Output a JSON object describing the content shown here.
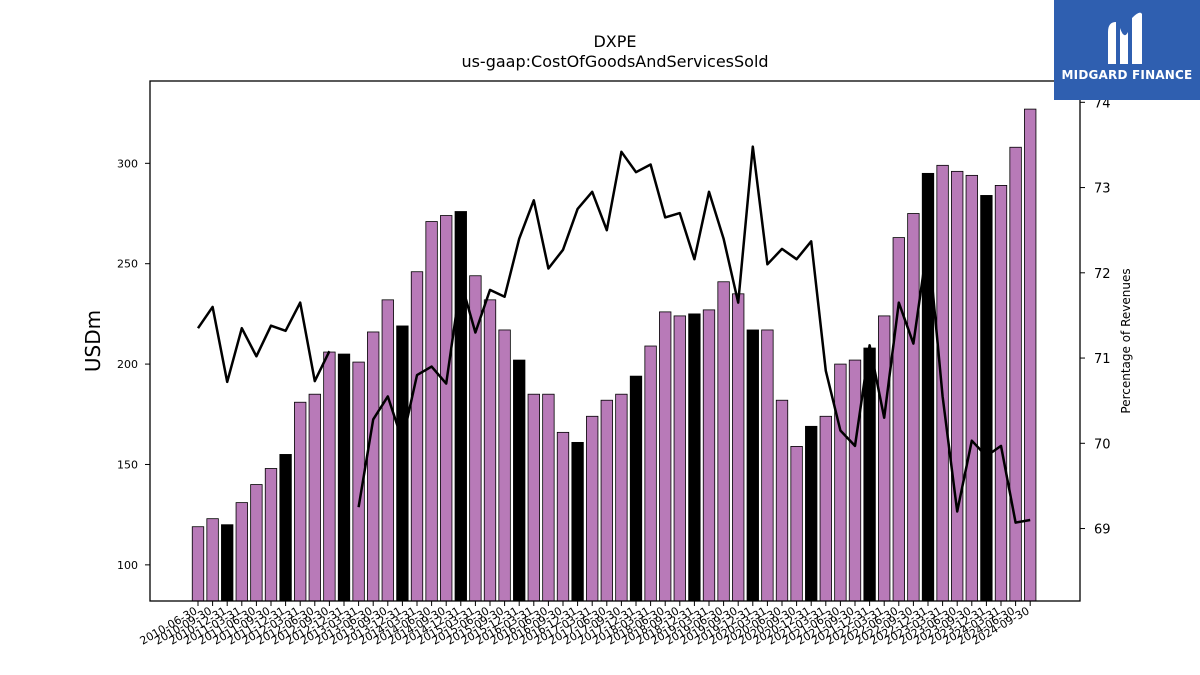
{
  "logo": {
    "text": "MIDGARD FINANCE"
  },
  "chart_data": {
    "type": "bar+line",
    "title": "DXPE",
    "subtitle": "us-gaap:CostOfGoodsAndServicesSold",
    "ylabel": "USDm",
    "y2label": "Percentage of Revenues",
    "ylim": [
      82,
      341
    ],
    "y2lim": [
      68.15,
      74.25
    ],
    "yticks": [
      100,
      150,
      200,
      250,
      300
    ],
    "y2ticks": [
      69,
      70,
      71,
      72,
      73,
      74
    ],
    "grid": false,
    "colors": {
      "quarter_bar": "#b87ab8",
      "annual_bar": "#000000",
      "line": "#000000"
    },
    "categories": [
      "2010-06-30",
      "2010-09-30",
      "2010-12-31",
      "2011-03-31",
      "2011-06-30",
      "2011-09-30",
      "2011-12-31",
      "2012-03-31",
      "2012-06-30",
      "2012-09-30",
      "2012-12-31",
      "2013-03-31",
      "2013-06-30",
      "2013-09-30",
      "2013-12-31",
      "2014-03-31",
      "2014-06-30",
      "2014-09-30",
      "2014-12-31",
      "2015-03-31",
      "2015-06-30",
      "2015-09-30",
      "2015-12-31",
      "2016-03-31",
      "2016-06-30",
      "2016-09-30",
      "2016-12-31",
      "2017-03-31",
      "2017-06-30",
      "2017-09-30",
      "2017-12-31",
      "2018-03-31",
      "2018-06-30",
      "2018-09-30",
      "2018-12-31",
      "2019-03-31",
      "2019-06-30",
      "2019-09-30",
      "2019-12-31",
      "2020-03-31",
      "2020-06-30",
      "2020-09-30",
      "2020-12-31",
      "2021-03-31",
      "2021-06-30",
      "2021-09-30",
      "2021-12-31",
      "2022-03-31",
      "2022-06-30",
      "2022-09-30",
      "2022-12-31",
      "2023-03-31",
      "2023-06-30",
      "2023-09-30",
      "2023-12-31",
      "2024-03-31",
      "2024-06-30",
      "2024-09-30"
    ],
    "series": [
      {
        "kind": "bar",
        "values": [
          119,
          123,
          120,
          131,
          140,
          148,
          155,
          181,
          185,
          206,
          205,
          201,
          216,
          232,
          219,
          246,
          271,
          274,
          276,
          244,
          232,
          217,
          202,
          185,
          185,
          166,
          161,
          174,
          182,
          185,
          194,
          209,
          226,
          224,
          225,
          227,
          241,
          235,
          217,
          217,
          182,
          159,
          169,
          174,
          200,
          202,
          208,
          224,
          263,
          275,
          295,
          299,
          296,
          294,
          284,
          289,
          308,
          327
        ],
        "annual": [
          false,
          false,
          true,
          false,
          false,
          false,
          true,
          false,
          false,
          false,
          true,
          false,
          false,
          false,
          true,
          false,
          false,
          false,
          true,
          false,
          false,
          false,
          true,
          false,
          false,
          false,
          true,
          false,
          false,
          false,
          true,
          false,
          false,
          false,
          true,
          false,
          false,
          false,
          true,
          false,
          false,
          false,
          true,
          false,
          false,
          false,
          true,
          false,
          false,
          false,
          true,
          false,
          false,
          false,
          true,
          false,
          false,
          false
        ]
      },
      {
        "kind": "line",
        "axis": "right",
        "values": [
          71.35,
          71.6,
          70.72,
          71.35,
          71.02,
          71.38,
          71.32,
          71.65,
          70.73,
          71.08,
          null,
          69.25,
          70.28,
          70.55,
          70.03,
          70.8,
          70.9,
          70.7,
          71.9,
          71.3,
          71.8,
          71.72,
          72.4,
          72.85,
          72.05,
          72.27,
          72.75,
          72.95,
          72.5,
          73.42,
          73.18,
          73.27,
          72.65,
          72.7,
          72.16,
          72.95,
          72.4,
          71.65,
          73.48,
          72.1,
          72.28,
          72.16,
          72.37,
          70.85,
          70.15,
          69.97,
          71.15,
          70.3,
          71.65,
          71.17,
          72.38,
          70.55,
          69.2,
          70.03,
          69.85,
          69.97,
          69.07,
          69.1
        ]
      }
    ]
  }
}
